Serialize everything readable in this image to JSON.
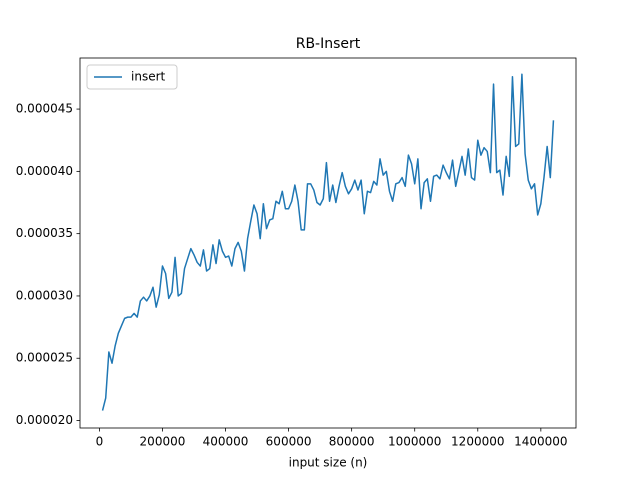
{
  "chart_data": {
    "type": "line",
    "title": "RB-Insert",
    "xlabel": "input size (n)",
    "x": [
      10000,
      20000,
      30000,
      40000,
      50000,
      60000,
      70000,
      80000,
      90000,
      100000,
      110000,
      120000,
      130000,
      140000,
      150000,
      160000,
      170000,
      180000,
      190000,
      200000,
      210000,
      220000,
      230000,
      240000,
      250000,
      260000,
      270000,
      280000,
      290000,
      300000,
      310000,
      320000,
      330000,
      340000,
      350000,
      360000,
      370000,
      380000,
      390000,
      400000,
      410000,
      420000,
      430000,
      440000,
      450000,
      460000,
      470000,
      480000,
      490000,
      500000,
      510000,
      520000,
      530000,
      540000,
      550000,
      560000,
      570000,
      580000,
      590000,
      600000,
      610000,
      620000,
      630000,
      640000,
      650000,
      660000,
      670000,
      680000,
      690000,
      700000,
      710000,
      720000,
      730000,
      740000,
      750000,
      760000,
      770000,
      780000,
      790000,
      800000,
      810000,
      820000,
      830000,
      840000,
      850000,
      860000,
      870000,
      880000,
      890000,
      900000,
      910000,
      920000,
      930000,
      940000,
      950000,
      960000,
      970000,
      980000,
      990000,
      1000000,
      1010000,
      1020000,
      1030000,
      1040000,
      1050000,
      1060000,
      1070000,
      1080000,
      1090000,
      1100000,
      1110000,
      1120000,
      1130000,
      1140000,
      1150000,
      1160000,
      1170000,
      1180000,
      1190000,
      1200000,
      1210000,
      1220000,
      1230000,
      1240000,
      1250000,
      1260000,
      1270000,
      1280000,
      1290000,
      1300000,
      1310000,
      1320000,
      1330000,
      1340000,
      1350000,
      1360000,
      1370000,
      1380000,
      1390000,
      1400000,
      1410000,
      1420000,
      1430000,
      1440000
    ],
    "series": [
      {
        "name": "insert",
        "color": "#1f77b4",
        "values": [
          2.08e-05,
          2.18e-05,
          2.55e-05,
          2.46e-05,
          2.6e-05,
          2.7e-05,
          2.76e-05,
          2.82e-05,
          2.83e-05,
          2.83e-05,
          2.86e-05,
          2.83e-05,
          2.96e-05,
          2.99e-05,
          2.96e-05,
          3e-05,
          3.07e-05,
          2.91e-05,
          3.01e-05,
          3.24e-05,
          3.18e-05,
          2.98e-05,
          3.03e-05,
          3.31e-05,
          3e-05,
          3.02e-05,
          3.22e-05,
          3.3e-05,
          3.38e-05,
          3.33e-05,
          3.27e-05,
          3.24e-05,
          3.37e-05,
          3.2e-05,
          3.22e-05,
          3.41e-05,
          3.26e-05,
          3.45e-05,
          3.36e-05,
          3.31e-05,
          3.32e-05,
          3.24e-05,
          3.38e-05,
          3.43e-05,
          3.36e-05,
          3.2e-05,
          3.46e-05,
          3.6e-05,
          3.73e-05,
          3.66e-05,
          3.46e-05,
          3.74e-05,
          3.54e-05,
          3.61e-05,
          3.62e-05,
          3.76e-05,
          3.74e-05,
          3.84e-05,
          3.7e-05,
          3.7e-05,
          3.76e-05,
          3.89e-05,
          3.76e-05,
          3.53e-05,
          3.53e-05,
          3.9e-05,
          3.9e-05,
          3.85e-05,
          3.75e-05,
          3.73e-05,
          3.78e-05,
          4.07e-05,
          3.76e-05,
          3.89e-05,
          3.75e-05,
          3.88e-05,
          3.99e-05,
          3.88e-05,
          3.82e-05,
          3.86e-05,
          3.93e-05,
          3.85e-05,
          3.93e-05,
          3.66e-05,
          3.84e-05,
          3.83e-05,
          3.92e-05,
          3.89e-05,
          4.1e-05,
          3.97e-05,
          4e-05,
          3.84e-05,
          3.76e-05,
          3.9e-05,
          3.91e-05,
          3.95e-05,
          3.88e-05,
          4.13e-05,
          4.06e-05,
          3.9e-05,
          4.1e-05,
          3.7e-05,
          3.91e-05,
          3.94e-05,
          3.76e-05,
          3.96e-05,
          3.97e-05,
          3.94e-05,
          4.05e-05,
          3.99e-05,
          3.94e-05,
          4.09e-05,
          3.88e-05,
          4e-05,
          4.12e-05,
          3.97e-05,
          4.18e-05,
          3.95e-05,
          3.93e-05,
          4.25e-05,
          4.13e-05,
          4.19e-05,
          4.16e-05,
          3.99e-05,
          4.7e-05,
          3.99e-05,
          4.01e-05,
          3.81e-05,
          4.12e-05,
          3.96e-05,
          4.76e-05,
          4.2e-05,
          4.22e-05,
          4.78e-05,
          4.14e-05,
          3.93e-05,
          3.86e-05,
          3.9e-05,
          3.65e-05,
          3.74e-05,
          3.95e-05,
          4.2e-05,
          3.95e-05,
          4.41e-05
        ]
      }
    ],
    "xlim": [
      -61500,
      1511500
    ],
    "xticks": [
      0,
      200000,
      400000,
      600000,
      800000,
      1000000,
      1200000,
      1400000
    ],
    "ylim": [
      1.94e-05,
      4.91e-05
    ],
    "yticks": [
      {
        "value": 2e-05,
        "label": "0.000020"
      },
      {
        "value": 2.5e-05,
        "label": "0.000025"
      },
      {
        "value": 3e-05,
        "label": "0.000030"
      },
      {
        "value": 3.5e-05,
        "label": "0.000035"
      },
      {
        "value": 4e-05,
        "label": "0.000040"
      },
      {
        "value": 4.5e-05,
        "label": "0.000045"
      }
    ],
    "legend": "upper left",
    "grid": false
  }
}
